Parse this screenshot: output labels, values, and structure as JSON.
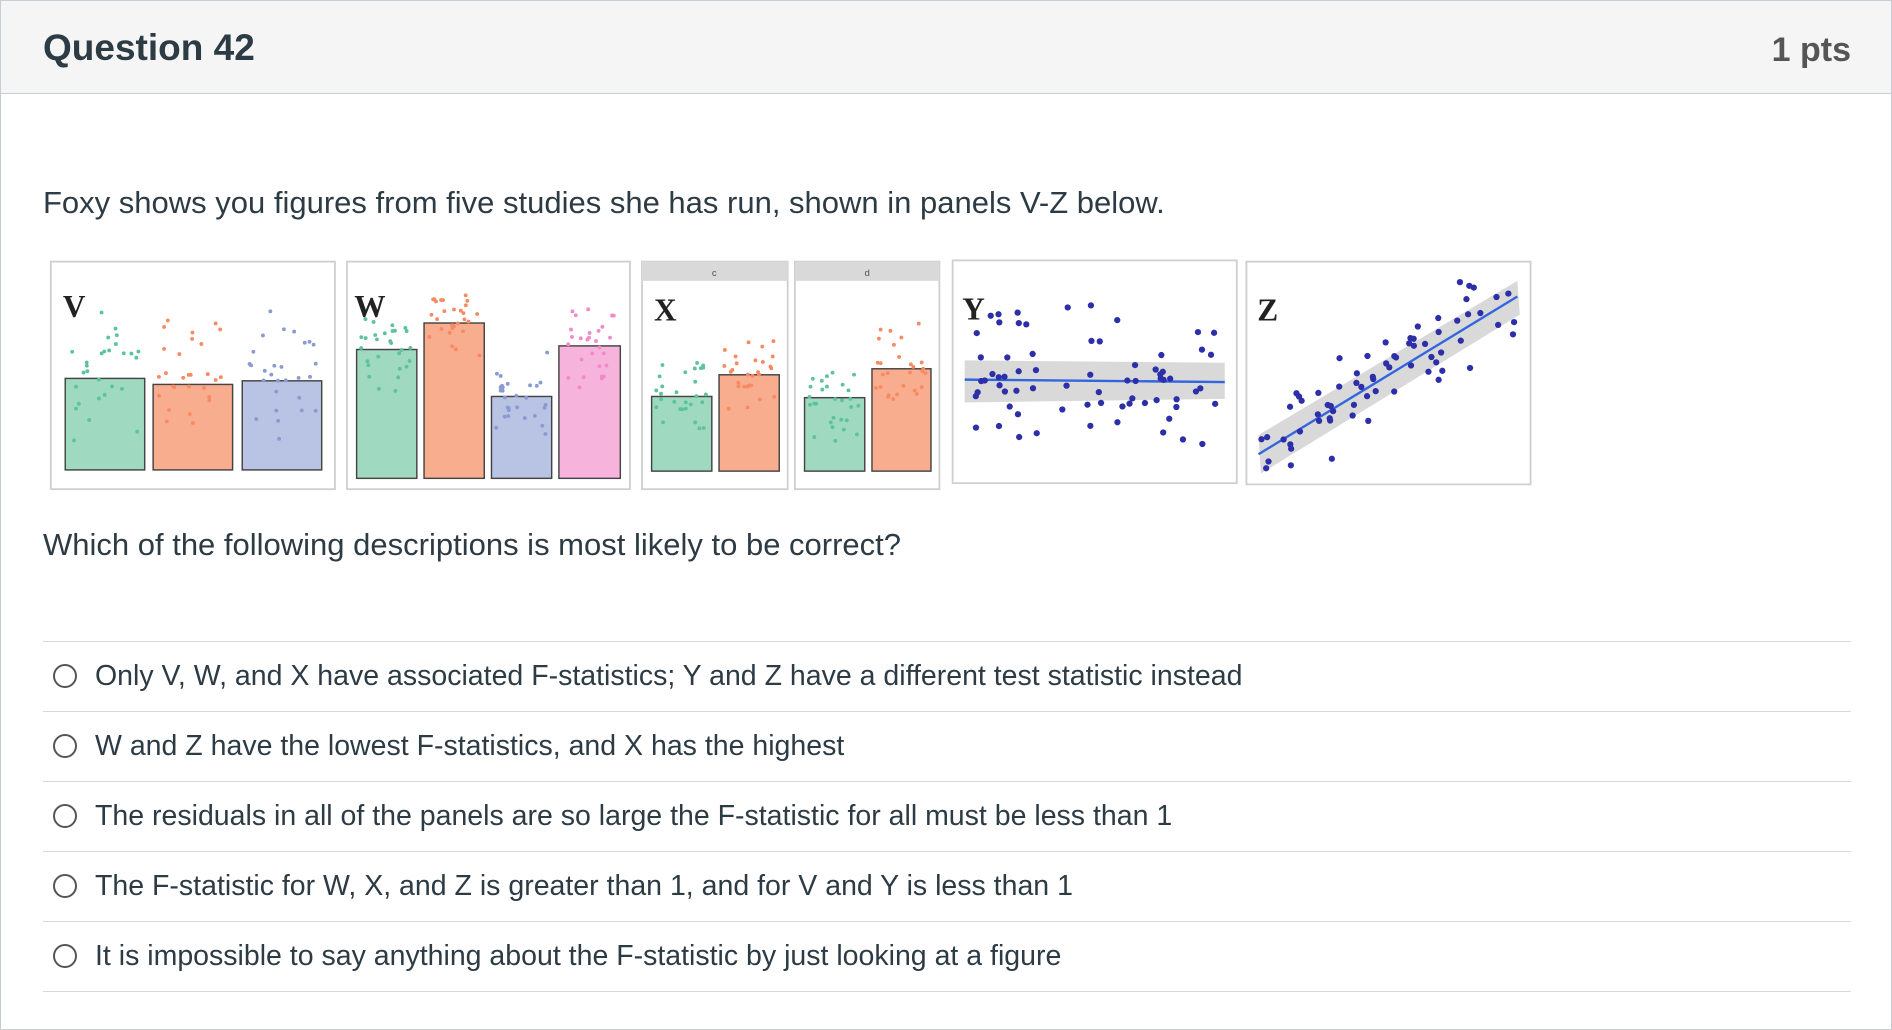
{
  "header": {
    "title": "Question 42",
    "points": "1 pts"
  },
  "prompt": "Foxy shows you figures from five studies she has run, shown in panels V-Z below.",
  "figure": {
    "panel_labels": [
      "V",
      "W",
      "X",
      "Y",
      "Z"
    ],
    "facet_labels": [
      "c",
      "d"
    ]
  },
  "question": "Which of the following descriptions is most likely to be correct?",
  "options": [
    "Only V, W, and X have associated F-statistics; Y and Z have a different test statistic instead",
    "W and Z have the lowest F-statistics, and X has the highest",
    "The residuals in all of the panels are so large the F-statistic for all must be less than 1",
    "The F-statistic for W, X, and Z is greater than 1, and for V and Y is less than 1",
    "It is impossible to say anything about the F-statistic by just looking at a figure"
  ]
}
